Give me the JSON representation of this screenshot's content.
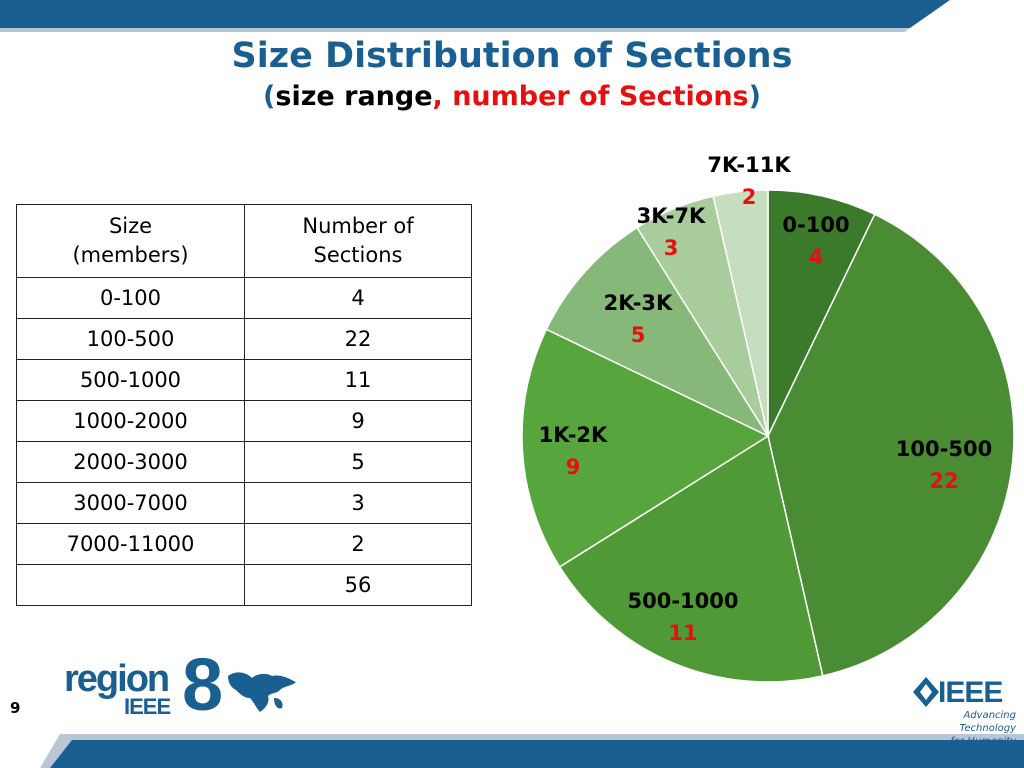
{
  "slide": {
    "title": "Size Distribution of Sections",
    "subtitle_open": "(",
    "subtitle_part1": "size range",
    "subtitle_sep": ",",
    "subtitle_part2": " number of Sections",
    "subtitle_close": ")",
    "page_number": "9"
  },
  "table": {
    "header_col1": "Size\n(members)",
    "header_col1_line1": "Size",
    "header_col1_line2": "(members)",
    "header_col2_line1": "Number of",
    "header_col2_line2": "Sections",
    "rows": [
      {
        "size": "0-100",
        "count": "4"
      },
      {
        "size": "100-500",
        "count": "22"
      },
      {
        "size": "500-1000",
        "count": "11"
      },
      {
        "size": "1000-2000",
        "count": "9"
      },
      {
        "size": "2000-3000",
        "count": "5"
      },
      {
        "size": "3000-7000",
        "count": "3"
      },
      {
        "size": "7000-11000",
        "count": "2"
      }
    ],
    "total_size": "",
    "total_count": "56"
  },
  "logos": {
    "region_word": "region",
    "region_ieee": "IEEE",
    "region_number": "8",
    "ieee_word": "IEEE",
    "ieee_tagline_1": "Advancing Technology",
    "ieee_tagline_2": "for Humanity"
  },
  "colors": {
    "title": "#1a5f91",
    "accent_red": "#e8100e",
    "band": "#1a5f91"
  },
  "chart_data": {
    "type": "pie",
    "title": "",
    "start": "12 o'clock, clockwise",
    "slices": [
      {
        "label": "0-100",
        "value": 4,
        "color": "#3a7a2a"
      },
      {
        "label": "100-500",
        "value": 22,
        "color": "#4a8c33"
      },
      {
        "label": "500-1000",
        "value": 11,
        "color": "#4f9a37"
      },
      {
        "label": "1K-2K",
        "value": 9,
        "color": "#56a63d"
      },
      {
        "label": "2K-3K",
        "value": 5,
        "color": "#86b879"
      },
      {
        "label": "3K-7K",
        "value": 3,
        "color": "#a9cc9c"
      },
      {
        "label": "7K-11K",
        "value": 2,
        "color": "#c7ddc0"
      }
    ]
  }
}
